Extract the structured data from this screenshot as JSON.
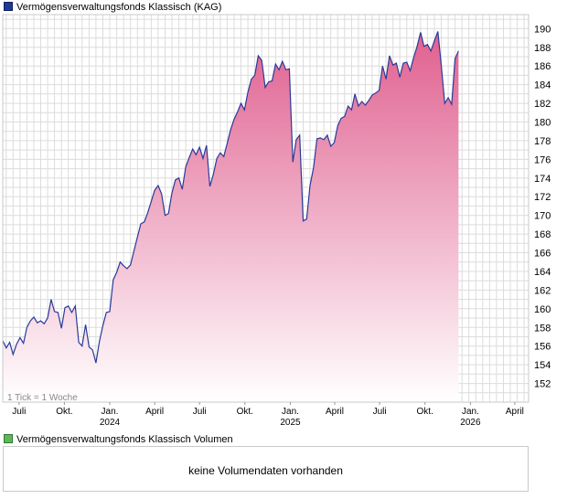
{
  "price_legend": {
    "label": "Vermögensverwaltungsfonds Klassisch (KAG)",
    "color": "#1f3a93"
  },
  "volume_legend": {
    "label": "Vermögensverwaltungsfonds Klassisch Volumen",
    "color": "#5cb85c"
  },
  "volume_message": "keine Volumendaten vorhanden",
  "tick_note": "1 Tick = 1 Woche",
  "colors": {
    "line": "#2b3a9a",
    "fill_top": "#e0608f",
    "fill_bottom": "#ffffff",
    "grid": "#dcdcdc"
  },
  "chart_data": {
    "type": "area",
    "ylim": [
      150,
      191.5
    ],
    "xlim": [
      "2023-05-29",
      "2026-04-29"
    ],
    "y_ticks": [
      152,
      154,
      156,
      158,
      160,
      162,
      164,
      166,
      168,
      170,
      172,
      174,
      176,
      178,
      180,
      182,
      184,
      186,
      188,
      190
    ],
    "x_ticks": [
      {
        "date": "2023-07-01",
        "label": "Juli",
        "year": ""
      },
      {
        "date": "2023-10-01",
        "label": "Okt.",
        "year": ""
      },
      {
        "date": "2024-01-01",
        "label": "Jan.",
        "year": "2024"
      },
      {
        "date": "2024-04-01",
        "label": "April",
        "year": ""
      },
      {
        "date": "2024-07-01",
        "label": "Juli",
        "year": ""
      },
      {
        "date": "2024-10-01",
        "label": "Okt.",
        "year": ""
      },
      {
        "date": "2025-01-01",
        "label": "Jan.",
        "year": "2025"
      },
      {
        "date": "2025-04-01",
        "label": "April",
        "year": ""
      },
      {
        "date": "2025-07-01",
        "label": "Juli",
        "year": ""
      },
      {
        "date": "2025-10-01",
        "label": "Okt.",
        "year": ""
      },
      {
        "date": "2026-01-01",
        "label": "Jan.",
        "year": "2026"
      },
      {
        "date": "2026-04-01",
        "label": "April",
        "year": ""
      }
    ],
    "series": [
      {
        "points": [
          [
            "2023-05-29",
            156.6
          ],
          [
            "2023-06-05",
            155.8
          ],
          [
            "2023-06-12",
            156.4
          ],
          [
            "2023-06-19",
            155.1
          ],
          [
            "2023-06-26",
            156.2
          ],
          [
            "2023-07-03",
            156.9
          ],
          [
            "2023-07-10",
            156.3
          ],
          [
            "2023-07-17",
            158.0
          ],
          [
            "2023-07-24",
            158.7
          ],
          [
            "2023-07-31",
            159.1
          ],
          [
            "2023-08-07",
            158.5
          ],
          [
            "2023-08-14",
            158.7
          ],
          [
            "2023-08-21",
            158.4
          ],
          [
            "2023-08-28",
            159.0
          ],
          [
            "2023-09-04",
            161.0
          ],
          [
            "2023-09-11",
            159.7
          ],
          [
            "2023-09-18",
            159.6
          ],
          [
            "2023-09-25",
            157.9
          ],
          [
            "2023-10-02",
            160.1
          ],
          [
            "2023-10-09",
            160.3
          ],
          [
            "2023-10-16",
            159.6
          ],
          [
            "2023-10-23",
            160.3
          ],
          [
            "2023-10-30",
            156.4
          ],
          [
            "2023-11-06",
            156.0
          ],
          [
            "2023-11-13",
            158.3
          ],
          [
            "2023-11-20",
            155.9
          ],
          [
            "2023-11-27",
            155.6
          ],
          [
            "2023-12-04",
            154.2
          ],
          [
            "2023-12-11",
            156.5
          ],
          [
            "2023-12-18",
            158.2
          ],
          [
            "2023-12-25",
            159.6
          ],
          [
            "2024-01-01",
            159.7
          ],
          [
            "2024-01-08",
            163.1
          ],
          [
            "2024-01-15",
            163.9
          ],
          [
            "2024-01-22",
            165.0
          ],
          [
            "2024-01-29",
            164.6
          ],
          [
            "2024-02-05",
            164.3
          ],
          [
            "2024-02-12",
            164.7
          ],
          [
            "2024-02-19",
            166.2
          ],
          [
            "2024-02-26",
            167.7
          ],
          [
            "2024-03-04",
            169.1
          ],
          [
            "2024-03-11",
            169.3
          ],
          [
            "2024-03-18",
            170.3
          ],
          [
            "2024-03-25",
            171.5
          ],
          [
            "2024-04-01",
            172.7
          ],
          [
            "2024-04-08",
            173.2
          ],
          [
            "2024-04-15",
            172.3
          ],
          [
            "2024-04-22",
            170.0
          ],
          [
            "2024-04-29",
            170.2
          ],
          [
            "2024-05-06",
            172.4
          ],
          [
            "2024-05-13",
            173.8
          ],
          [
            "2024-05-20",
            174.0
          ],
          [
            "2024-05-27",
            172.8
          ],
          [
            "2024-06-03",
            175.2
          ],
          [
            "2024-06-10",
            176.2
          ],
          [
            "2024-06-17",
            177.1
          ],
          [
            "2024-06-24",
            176.5
          ],
          [
            "2024-07-01",
            177.3
          ],
          [
            "2024-07-08",
            176.1
          ],
          [
            "2024-07-15",
            177.5
          ],
          [
            "2024-07-22",
            173.1
          ],
          [
            "2024-07-29",
            174.4
          ],
          [
            "2024-08-05",
            176.1
          ],
          [
            "2024-08-12",
            176.7
          ],
          [
            "2024-08-19",
            176.3
          ],
          [
            "2024-08-26",
            177.7
          ],
          [
            "2024-09-02",
            179.2
          ],
          [
            "2024-09-09",
            180.3
          ],
          [
            "2024-09-16",
            181.1
          ],
          [
            "2024-09-23",
            182.0
          ],
          [
            "2024-09-30",
            181.3
          ],
          [
            "2024-10-07",
            183.2
          ],
          [
            "2024-10-14",
            184.6
          ],
          [
            "2024-10-21",
            185.0
          ],
          [
            "2024-10-28",
            187.1
          ],
          [
            "2024-11-04",
            186.6
          ],
          [
            "2024-11-11",
            183.7
          ],
          [
            "2024-11-18",
            184.3
          ],
          [
            "2024-11-25",
            184.4
          ],
          [
            "2024-12-02",
            186.2
          ],
          [
            "2024-12-09",
            185.6
          ],
          [
            "2024-12-16",
            186.5
          ],
          [
            "2024-12-23",
            185.6
          ],
          [
            "2024-12-30",
            185.7
          ],
          [
            "2025-01-06",
            175.7
          ],
          [
            "2025-01-13",
            178.1
          ],
          [
            "2025-01-20",
            178.6
          ],
          [
            "2025-01-27",
            169.4
          ],
          [
            "2025-02-03",
            169.6
          ],
          [
            "2025-02-10",
            173.2
          ],
          [
            "2025-02-17",
            175.1
          ],
          [
            "2025-02-24",
            178.2
          ],
          [
            "2025-03-03",
            178.3
          ],
          [
            "2025-03-10",
            178.1
          ],
          [
            "2025-03-17",
            178.6
          ],
          [
            "2025-03-24",
            177.4
          ],
          [
            "2025-03-31",
            177.8
          ],
          [
            "2025-04-07",
            179.6
          ],
          [
            "2025-04-14",
            180.4
          ],
          [
            "2025-04-21",
            180.6
          ],
          [
            "2025-04-28",
            181.7
          ],
          [
            "2025-05-05",
            181.3
          ],
          [
            "2025-05-12",
            183.0
          ],
          [
            "2025-05-19",
            181.7
          ],
          [
            "2025-05-26",
            182.2
          ],
          [
            "2025-06-02",
            181.8
          ],
          [
            "2025-06-09",
            182.3
          ],
          [
            "2025-06-16",
            182.9
          ],
          [
            "2025-06-23",
            183.1
          ],
          [
            "2025-06-30",
            183.4
          ],
          [
            "2025-07-07",
            186.0
          ],
          [
            "2025-07-14",
            184.6
          ],
          [
            "2025-07-21",
            187.1
          ],
          [
            "2025-07-28",
            186.1
          ],
          [
            "2025-08-04",
            186.3
          ],
          [
            "2025-08-11",
            184.8
          ],
          [
            "2025-08-18",
            186.3
          ],
          [
            "2025-08-25",
            186.4
          ],
          [
            "2025-09-01",
            185.5
          ],
          [
            "2025-09-08",
            186.9
          ],
          [
            "2025-09-15",
            188.1
          ],
          [
            "2025-09-22",
            189.6
          ],
          [
            "2025-09-29",
            188.1
          ],
          [
            "2025-10-06",
            188.3
          ],
          [
            "2025-10-13",
            187.6
          ],
          [
            "2025-10-20",
            188.7
          ],
          [
            "2025-10-27",
            189.7
          ],
          [
            "2025-11-03",
            186.1
          ],
          [
            "2025-11-10",
            182.0
          ],
          [
            "2025-11-17",
            182.6
          ],
          [
            "2025-11-24",
            181.9
          ],
          [
            "2025-12-01",
            186.8
          ],
          [
            "2025-12-08",
            187.6
          ]
        ]
      }
    ]
  }
}
